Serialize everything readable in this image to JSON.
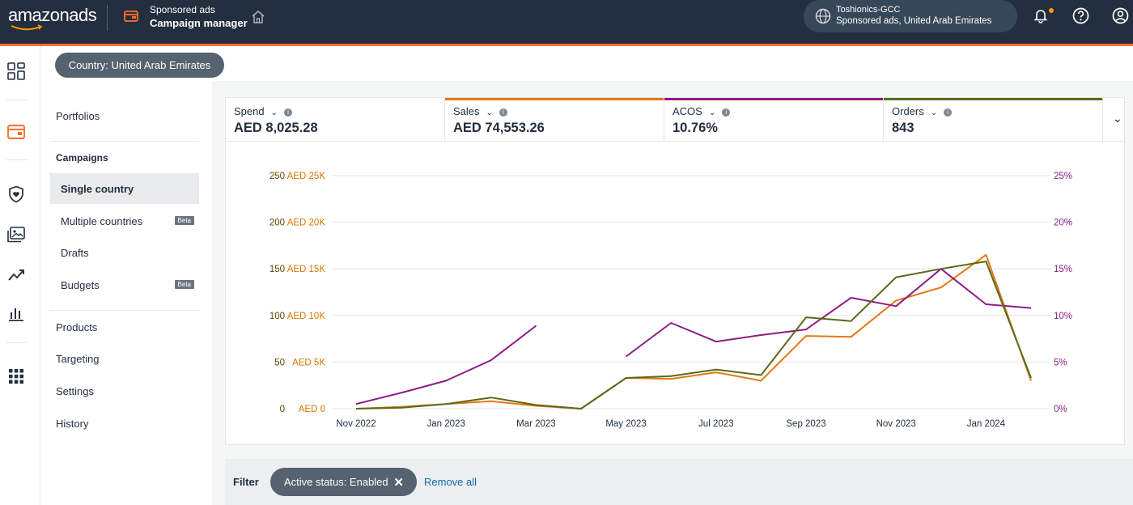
{
  "header": {
    "brand": "amazonads",
    "product_line1": "Sponsored ads",
    "product_line2": "Campaign manager",
    "account_name": "Toshionics-GCC",
    "account_sub": "Sponsored ads, United Arab Emirates",
    "icons": [
      "wallet-icon",
      "home-icon",
      "globe-icon",
      "bell-icon",
      "help-icon",
      "user-icon"
    ]
  },
  "country_filter": "Country: United Arab Emirates",
  "nav": {
    "portfolios": "Portfolios",
    "campaigns_header": "Campaigns",
    "single_country": "Single country",
    "multiple_countries": "Multiple countries",
    "multiple_badge": "Beta",
    "drafts": "Drafts",
    "budgets": "Budgets",
    "budgets_badge": "Beta",
    "products": "Products",
    "targeting": "Targeting",
    "settings": "Settings",
    "history": "History"
  },
  "metrics": [
    {
      "label": "Spend",
      "value": "AED 8,025.28",
      "color": ""
    },
    {
      "label": "Sales",
      "value": "AED 74,553.26",
      "color": "#e47911"
    },
    {
      "label": "ACOS",
      "value": "10.76%",
      "color": "#8c1d82"
    },
    {
      "label": "Orders",
      "value": "843",
      "color": "#5b6a1a"
    }
  ],
  "chart_data": {
    "type": "line",
    "x": [
      "Nov 2022",
      "Dec 2022",
      "Jan 2023",
      "Feb 2023",
      "Mar 2023",
      "Apr 2023",
      "May 2023",
      "Jun 2023",
      "Jul 2023",
      "Aug 2023",
      "Sep 2023",
      "Oct 2023",
      "Nov 2023",
      "Dec 2023",
      "Jan 2024",
      "Feb 2024"
    ],
    "x_tick_labels": [
      "Nov 2022",
      "Jan 2023",
      "Mar 2023",
      "May 2023",
      "Jul 2023",
      "Sep 2023",
      "Nov 2023",
      "Jan 2024"
    ],
    "left_axis_orders": {
      "ticks": [
        0,
        50,
        100,
        150,
        200,
        250
      ],
      "ylim": [
        0,
        250
      ]
    },
    "left_axis_sales": {
      "ticks": [
        "AED 0",
        "AED 5K",
        "AED 10K",
        "AED 15K",
        "AED 20K",
        "AED 25K"
      ],
      "ylim": [
        0,
        25000
      ]
    },
    "right_axis_acos": {
      "ticks": [
        "0%",
        "5%",
        "10%",
        "15%",
        "20%",
        "25%"
      ],
      "ylim": [
        0,
        25
      ]
    },
    "series": [
      {
        "name": "Sales",
        "axis": "sales",
        "color": "#e47911",
        "values": [
          0,
          200,
          500,
          800,
          300,
          0,
          3300,
          3200,
          3900,
          3000,
          7800,
          7700,
          11600,
          13000,
          16500,
          3000
        ]
      },
      {
        "name": "ACOS",
        "axis": "acos",
        "color": "#8c1d82",
        "values": [
          0.5,
          1.7,
          3.0,
          5.2,
          8.9,
          null,
          5.6,
          9.2,
          7.2,
          7.9,
          8.5,
          11.9,
          11.0,
          15.0,
          11.2,
          10.8
        ]
      },
      {
        "name": "Orders",
        "axis": "orders",
        "color": "#5b6a1a",
        "values": [
          0,
          1,
          5,
          12,
          4,
          0,
          33,
          35,
          42,
          36,
          98,
          94,
          141,
          150,
          158,
          33
        ]
      }
    ],
    "grid": true
  },
  "filter_bar": {
    "label": "Filter",
    "chip": "Active status: Enabled",
    "remove_all": "Remove all"
  }
}
